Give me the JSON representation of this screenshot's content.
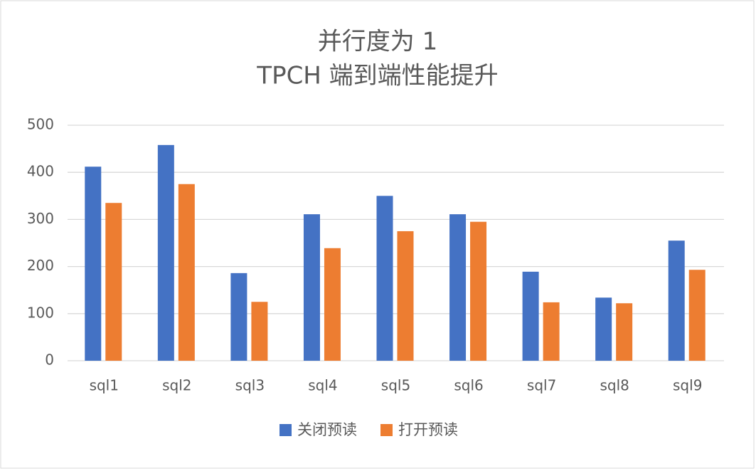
{
  "chart_data": {
    "type": "bar",
    "title": [
      "并行度为 1",
      "TPCH 端到端性能提升"
    ],
    "categories": [
      "sql1",
      "sql2",
      "sql3",
      "sql4",
      "sql5",
      "sql6",
      "sql7",
      "sql8",
      "sql9"
    ],
    "series": [
      {
        "name": "关闭预读",
        "color": "#4472c4",
        "values": [
          412,
          458,
          186,
          311,
          350,
          311,
          189,
          134,
          255
        ]
      },
      {
        "name": "打开预读",
        "color": "#ed7d31",
        "values": [
          335,
          375,
          125,
          239,
          275,
          295,
          124,
          122,
          193
        ]
      }
    ],
    "ylim": [
      0,
      500
    ],
    "yticks": [
      0,
      100,
      200,
      300,
      400,
      500
    ],
    "grid": true
  }
}
